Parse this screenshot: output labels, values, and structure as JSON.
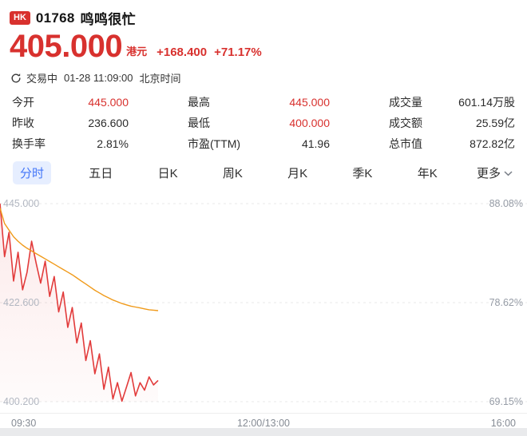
{
  "header": {
    "market_badge": "HK",
    "stock_code": "01768",
    "stock_name": "鸣鸣很忙",
    "price": "405.000",
    "currency": "港元",
    "change": "+168.400",
    "change_pct": "+71.17%"
  },
  "status": {
    "state": "交易中",
    "datetime": "01-28 11:09:00",
    "timezone": "北京时间"
  },
  "stats": {
    "columns": [
      {
        "rows": [
          {
            "label": "今开",
            "value": "445.000"
          },
          {
            "label": "昨收",
            "value": "236.600"
          },
          {
            "label": "换手率",
            "value": "2.81%"
          }
        ]
      },
      {
        "rows": [
          {
            "label": "最高",
            "value": "445.000"
          },
          {
            "label": "最低",
            "value": "400.000"
          },
          {
            "label": "市盈(TTM)",
            "value": "41.96"
          }
        ]
      },
      {
        "rows": [
          {
            "label": "成交量",
            "value": "601.14万股"
          },
          {
            "label": "成交额",
            "value": "25.59亿"
          },
          {
            "label": "总市值",
            "value": "872.82亿"
          }
        ]
      }
    ]
  },
  "tabs": {
    "items": [
      "分时",
      "五日",
      "日K",
      "周K",
      "月K",
      "季K",
      "年K",
      "更多"
    ],
    "active_index": 0
  },
  "colors": {
    "accent_red": "#d8312e",
    "tab_active": "#4376f8",
    "tab_active_bg": "#e6eeff",
    "price_line": "#e23b3b",
    "avg_line": "#f09a1a",
    "grid": "#e8e8e8"
  },
  "chart_data": {
    "type": "line",
    "title": "分时",
    "prev_close": 236.6,
    "ylim": [
      400.2,
      445.0
    ],
    "session_minutes": 330,
    "elapsed_minutes": 99,
    "grid": true,
    "y_axis_left_labels": [
      "445.000",
      "422.600",
      "400.200"
    ],
    "y_axis_right_labels": [
      "88.08%",
      "78.62%",
      "69.15%"
    ],
    "x_axis_labels": [
      "09:30",
      "12:00/13:00",
      "16:00"
    ],
    "series": [
      {
        "name": "price",
        "color": "#e23b3b",
        "values": [
          445.0,
          433.0,
          438.5,
          427.5,
          434.0,
          425.5,
          429.5,
          436.5,
          431.5,
          427.0,
          432.0,
          424.0,
          428.5,
          420.5,
          425.0,
          417.0,
          421.5,
          413.5,
          418.0,
          409.5,
          414.0,
          406.5,
          411.0,
          403.0,
          408.0,
          400.8,
          404.5,
          400.3,
          403.5,
          406.8,
          401.5,
          404.5,
          402.8,
          405.8,
          404.0,
          405.0
        ]
      },
      {
        "name": "avg_price",
        "color": "#f09a1a",
        "values": [
          444.0,
          440.5,
          439.0,
          437.5,
          436.5,
          435.6,
          434.9,
          434.3,
          433.7,
          433.1,
          432.5,
          431.9,
          431.3,
          430.7,
          430.1,
          429.5,
          428.9,
          428.2,
          427.5,
          426.8,
          426.1,
          425.4,
          424.8,
          424.2,
          423.7,
          423.2,
          422.8,
          422.4,
          422.1,
          421.8,
          421.6,
          421.4,
          421.2,
          421.0,
          420.9,
          420.8
        ]
      }
    ]
  }
}
